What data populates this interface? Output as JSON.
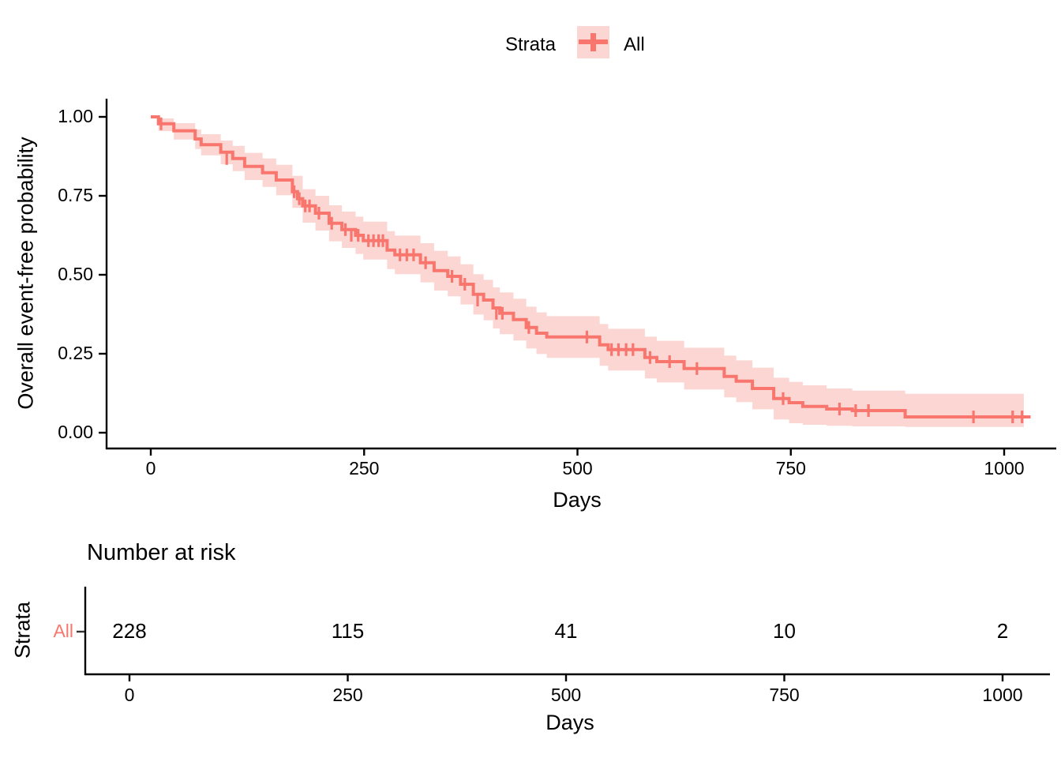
{
  "legend": {
    "title": "Strata",
    "item_label": "All"
  },
  "main_plot": {
    "y_axis_title": "Overall event-free probability",
    "x_axis_title": "Days"
  },
  "risk_section": {
    "title": "Number at risk",
    "y_axis_title": "Strata",
    "row_label": "All",
    "x_axis_title": "Days"
  },
  "colors": {
    "stratum": "#F8766D",
    "ci_fill": "#FBD6D2",
    "axis": "#000000",
    "row_tick": "#333333"
  },
  "chart_data": {
    "type": "line",
    "subtype": "kaplan_meier_survival",
    "title": "",
    "xlabel": "Days",
    "ylabel": "Overall event-free probability",
    "xlim": [
      0,
      1031
    ],
    "ylim": [
      0,
      1
    ],
    "grid": false,
    "legend_position": "top",
    "legend_title": "Strata",
    "x_ticks": [
      0,
      250,
      500,
      750,
      1000
    ],
    "x_tick_labels": [
      "0",
      "250",
      "500",
      "750",
      "1000"
    ],
    "y_ticks": [
      0,
      0.25,
      0.5,
      0.75,
      1.0
    ],
    "y_tick_labels": [
      "0.00",
      "0.25",
      "0.50",
      "0.75",
      "1.00"
    ],
    "strata": [
      {
        "name": "All",
        "steps": [
          [
            0,
            1.0
          ],
          [
            9,
            0.978
          ],
          [
            27,
            0.956
          ],
          [
            52,
            0.93
          ],
          [
            59,
            0.912
          ],
          [
            82,
            0.888
          ],
          [
            96,
            0.868
          ],
          [
            110,
            0.843
          ],
          [
            131,
            0.823
          ],
          [
            147,
            0.8
          ],
          [
            166,
            0.763
          ],
          [
            172,
            0.741
          ],
          [
            178,
            0.718
          ],
          [
            193,
            0.695
          ],
          [
            209,
            0.663
          ],
          [
            224,
            0.643
          ],
          [
            240,
            0.625
          ],
          [
            249,
            0.608
          ],
          [
            277,
            0.578
          ],
          [
            286,
            0.563
          ],
          [
            316,
            0.538
          ],
          [
            332,
            0.513
          ],
          [
            348,
            0.495
          ],
          [
            363,
            0.47
          ],
          [
            378,
            0.438
          ],
          [
            390,
            0.42
          ],
          [
            401,
            0.395
          ],
          [
            409,
            0.378
          ],
          [
            425,
            0.358
          ],
          [
            440,
            0.333
          ],
          [
            452,
            0.315
          ],
          [
            464,
            0.303
          ],
          [
            526,
            0.278
          ],
          [
            536,
            0.263
          ],
          [
            579,
            0.238
          ],
          [
            593,
            0.225
          ],
          [
            625,
            0.203
          ],
          [
            672,
            0.178
          ],
          [
            686,
            0.163
          ],
          [
            705,
            0.14
          ],
          [
            730,
            0.108
          ],
          [
            748,
            0.095
          ],
          [
            764,
            0.083
          ],
          [
            792,
            0.075
          ],
          [
            822,
            0.07
          ],
          [
            884,
            0.05
          ],
          [
            1031,
            0.05
          ]
        ],
        "censors": [
          [
            12,
            0.978
          ],
          [
            89,
            0.868
          ],
          [
            168,
            0.763
          ],
          [
            174,
            0.741
          ],
          [
            181,
            0.718
          ],
          [
            186,
            0.718
          ],
          [
            197,
            0.695
          ],
          [
            212,
            0.663
          ],
          [
            228,
            0.643
          ],
          [
            235,
            0.625
          ],
          [
            243,
            0.625
          ],
          [
            255,
            0.608
          ],
          [
            261,
            0.608
          ],
          [
            267,
            0.608
          ],
          [
            272,
            0.608
          ],
          [
            292,
            0.563
          ],
          [
            300,
            0.563
          ],
          [
            308,
            0.563
          ],
          [
            322,
            0.538
          ],
          [
            353,
            0.495
          ],
          [
            368,
            0.47
          ],
          [
            383,
            0.42
          ],
          [
            405,
            0.378
          ],
          [
            412,
            0.378
          ],
          [
            443,
            0.333
          ],
          [
            511,
            0.303
          ],
          [
            540,
            0.263
          ],
          [
            548,
            0.263
          ],
          [
            557,
            0.263
          ],
          [
            565,
            0.263
          ],
          [
            585,
            0.238
          ],
          [
            608,
            0.225
          ],
          [
            640,
            0.203
          ],
          [
            741,
            0.108
          ],
          [
            807,
            0.075
          ],
          [
            826,
            0.07
          ],
          [
            841,
            0.07
          ],
          [
            964,
            0.05
          ],
          [
            1010,
            0.05
          ],
          [
            1021,
            0.05
          ]
        ],
        "ci": [
          [
            0,
            1.0,
            1.0
          ],
          [
            9,
            0.955,
            0.995
          ],
          [
            27,
            0.928,
            0.98
          ],
          [
            52,
            0.898,
            0.96
          ],
          [
            59,
            0.878,
            0.945
          ],
          [
            82,
            0.85,
            0.925
          ],
          [
            96,
            0.828,
            0.908
          ],
          [
            110,
            0.8,
            0.886
          ],
          [
            131,
            0.778,
            0.868
          ],
          [
            147,
            0.752,
            0.848
          ],
          [
            166,
            0.712,
            0.813
          ],
          [
            178,
            0.665,
            0.771
          ],
          [
            193,
            0.64,
            0.75
          ],
          [
            209,
            0.606,
            0.72
          ],
          [
            224,
            0.585,
            0.7
          ],
          [
            240,
            0.566,
            0.684
          ],
          [
            249,
            0.548,
            0.668
          ],
          [
            277,
            0.518,
            0.638
          ],
          [
            286,
            0.502,
            0.624
          ],
          [
            316,
            0.476,
            0.6
          ],
          [
            332,
            0.45,
            0.576
          ],
          [
            348,
            0.432,
            0.558
          ],
          [
            363,
            0.406,
            0.533
          ],
          [
            378,
            0.374,
            0.502
          ],
          [
            390,
            0.356,
            0.484
          ],
          [
            401,
            0.33,
            0.46
          ],
          [
            409,
            0.312,
            0.444
          ],
          [
            425,
            0.292,
            0.424
          ],
          [
            440,
            0.267,
            0.399
          ],
          [
            452,
            0.249,
            0.381
          ],
          [
            464,
            0.237,
            0.369
          ],
          [
            526,
            0.212,
            0.344
          ],
          [
            536,
            0.197,
            0.329
          ],
          [
            579,
            0.172,
            0.304
          ],
          [
            593,
            0.159,
            0.291
          ],
          [
            625,
            0.137,
            0.269
          ],
          [
            672,
            0.112,
            0.244
          ],
          [
            686,
            0.097,
            0.229
          ],
          [
            705,
            0.074,
            0.206
          ],
          [
            730,
            0.042,
            0.174
          ],
          [
            748,
            0.03,
            0.161
          ],
          [
            764,
            0.025,
            0.15
          ],
          [
            792,
            0.022,
            0.14
          ],
          [
            822,
            0.02,
            0.133
          ],
          [
            884,
            0.018,
            0.123
          ],
          [
            1023,
            0.018,
            0.123
          ]
        ]
      }
    ],
    "risk_table": {
      "title": "Number at risk",
      "strata_label": "All",
      "times": [
        0,
        250,
        500,
        750,
        1000
      ],
      "at_risk": [
        228,
        115,
        41,
        10,
        2
      ]
    }
  }
}
